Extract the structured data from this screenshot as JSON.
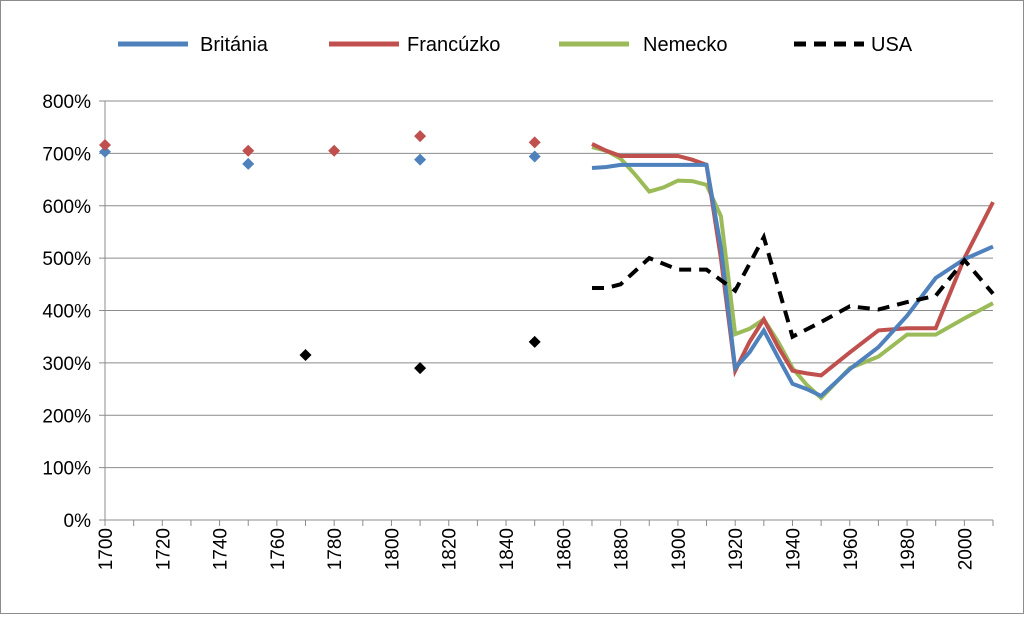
{
  "chart_data": {
    "type": "line",
    "title": "",
    "xlabel": "",
    "ylabel": "",
    "xlim": [
      1700,
      2010
    ],
    "ylim": [
      0,
      800
    ],
    "y_ticks": [
      "0%",
      "100%",
      "200%",
      "300%",
      "400%",
      "500%",
      "600%",
      "700%",
      "800%"
    ],
    "x_ticks": [
      "1700",
      "1720",
      "1740",
      "1760",
      "1780",
      "1800",
      "1820",
      "1840",
      "1860",
      "1880",
      "1900",
      "1920",
      "1940",
      "1960",
      "1980",
      "2000"
    ],
    "grid": "horizontal",
    "legend_position": "top",
    "series": [
      {
        "name": "Británia",
        "color": "#4f81bd",
        "style": "solid",
        "markers": [
          [
            1700,
            703
          ],
          [
            1750,
            680
          ],
          [
            1810,
            688
          ],
          [
            1850,
            694
          ]
        ],
        "line": [
          [
            1870,
            672
          ],
          [
            1875,
            674
          ],
          [
            1880,
            678
          ],
          [
            1890,
            678
          ],
          [
            1900,
            678
          ],
          [
            1910,
            678
          ],
          [
            1915,
            520
          ],
          [
            1920,
            290
          ],
          [
            1925,
            320
          ],
          [
            1930,
            362
          ],
          [
            1935,
            310
          ],
          [
            1940,
            260
          ],
          [
            1945,
            250
          ],
          [
            1950,
            237
          ],
          [
            1960,
            288
          ],
          [
            1970,
            330
          ],
          [
            1980,
            390
          ],
          [
            1990,
            462
          ],
          [
            2000,
            498
          ],
          [
            2010,
            522
          ]
        ]
      },
      {
        "name": "Francúzko",
        "color": "#c0504d",
        "style": "solid",
        "markers": [
          [
            1700,
            716
          ],
          [
            1750,
            705
          ],
          [
            1780,
            705
          ],
          [
            1810,
            733
          ],
          [
            1850,
            721
          ]
        ],
        "line": [
          [
            1870,
            718
          ],
          [
            1875,
            705
          ],
          [
            1880,
            695
          ],
          [
            1890,
            695
          ],
          [
            1900,
            695
          ],
          [
            1905,
            688
          ],
          [
            1910,
            678
          ],
          [
            1915,
            500
          ],
          [
            1920,
            285
          ],
          [
            1925,
            340
          ],
          [
            1930,
            383
          ],
          [
            1935,
            330
          ],
          [
            1940,
            285
          ],
          [
            1945,
            280
          ],
          [
            1950,
            276
          ],
          [
            1960,
            320
          ],
          [
            1970,
            362
          ],
          [
            1980,
            366
          ],
          [
            1990,
            366
          ],
          [
            2000,
            500
          ],
          [
            2010,
            607
          ]
        ]
      },
      {
        "name": "Nemecko",
        "color": "#9bbb59",
        "style": "solid",
        "markers": [],
        "line": [
          [
            1870,
            712
          ],
          [
            1875,
            705
          ],
          [
            1880,
            690
          ],
          [
            1885,
            660
          ],
          [
            1890,
            627
          ],
          [
            1895,
            635
          ],
          [
            1900,
            648
          ],
          [
            1905,
            647
          ],
          [
            1910,
            640
          ],
          [
            1915,
            580
          ],
          [
            1920,
            355
          ],
          [
            1925,
            365
          ],
          [
            1930,
            383
          ],
          [
            1935,
            340
          ],
          [
            1940,
            290
          ],
          [
            1945,
            258
          ],
          [
            1950,
            233
          ],
          [
            1960,
            290
          ],
          [
            1970,
            312
          ],
          [
            1980,
            354
          ],
          [
            1990,
            354
          ],
          [
            2000,
            385
          ],
          [
            2010,
            414
          ]
        ]
      },
      {
        "name": "USA",
        "color": "#000000",
        "style": "dashed",
        "markers": [
          [
            1770,
            315
          ],
          [
            1810,
            290
          ],
          [
            1850,
            340
          ]
        ],
        "line": [
          [
            1870,
            443
          ],
          [
            1875,
            443
          ],
          [
            1880,
            450
          ],
          [
            1890,
            500
          ],
          [
            1900,
            478
          ],
          [
            1910,
            478
          ],
          [
            1920,
            438
          ],
          [
            1930,
            540
          ],
          [
            1940,
            350
          ],
          [
            1950,
            378
          ],
          [
            1960,
            408
          ],
          [
            1970,
            402
          ],
          [
            1980,
            416
          ],
          [
            1990,
            428
          ],
          [
            2000,
            496
          ],
          [
            2010,
            432
          ]
        ]
      }
    ]
  }
}
